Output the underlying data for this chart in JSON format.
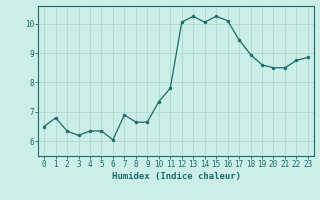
{
  "x": [
    0,
    1,
    2,
    3,
    4,
    5,
    6,
    7,
    8,
    9,
    10,
    11,
    12,
    13,
    14,
    15,
    16,
    17,
    18,
    19,
    20,
    21,
    22,
    23
  ],
  "y": [
    6.5,
    6.8,
    6.35,
    6.2,
    6.35,
    6.35,
    6.05,
    6.9,
    6.65,
    6.65,
    7.35,
    7.8,
    10.05,
    10.25,
    10.05,
    10.25,
    10.1,
    9.45,
    8.95,
    8.6,
    8.5,
    8.5,
    8.75,
    8.85
  ],
  "line_color": "#1a6b6b",
  "marker_color": "#1a6b6b",
  "bg_color": "#cceee8",
  "grid_color": "#b0d8d0",
  "axis_color": "#1a6b6b",
  "tick_color": "#1a6b6b",
  "xlabel": "Humidex (Indice chaleur)",
  "ylim": [
    5.5,
    10.6
  ],
  "xlim": [
    -0.5,
    23.5
  ],
  "yticks": [
    6,
    7,
    8,
    9,
    10
  ],
  "xticks": [
    0,
    1,
    2,
    3,
    4,
    5,
    6,
    7,
    8,
    9,
    10,
    11,
    12,
    13,
    14,
    15,
    16,
    17,
    18,
    19,
    20,
    21,
    22,
    23
  ],
  "label_fontsize": 6.5,
  "tick_fontsize": 5.5
}
